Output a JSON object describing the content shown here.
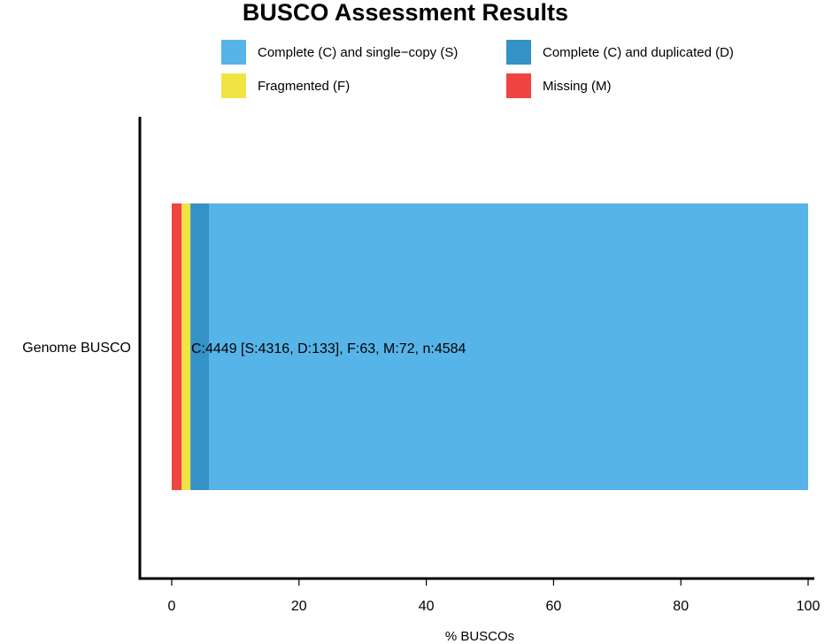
{
  "chart_data": {
    "type": "bar",
    "orientation": "horizontal",
    "stacked": true,
    "title": "BUSCO Assessment Results",
    "xlabel": "% BUSCOs",
    "ylabel": "",
    "xlim": [
      0,
      100
    ],
    "x_ticks": [
      "0",
      "20",
      "40",
      "60",
      "80",
      "100"
    ],
    "categories": [
      "Genome BUSCO"
    ],
    "series": [
      {
        "name": "Missing (M)",
        "color": "#F04442",
        "values": [
          1.57
        ]
      },
      {
        "name": "Fragmented (F)",
        "color": "#F0E442",
        "values": [
          1.37
        ]
      },
      {
        "name": "Complete (C) and duplicated (D)",
        "color": "#3492C7",
        "values": [
          2.9
        ]
      },
      {
        "name": "Complete (C) and single-copy (S)",
        "color": "#56B4E9",
        "values": [
          94.16
        ]
      }
    ],
    "legend": {
      "placement": "top",
      "items": [
        {
          "label": "Complete (C) and single−copy (S)",
          "color": "#56B4E9"
        },
        {
          "label": "Complete (C) and duplicated (D)",
          "color": "#3492C7"
        },
        {
          "label": "Fragmented (F)",
          "color": "#F0E442"
        },
        {
          "label": "Missing (M)",
          "color": "#F04442"
        }
      ]
    },
    "annotation": "C:4449 [S:4316, D:133], F:63, M:72, n:4584",
    "grid": false
  }
}
